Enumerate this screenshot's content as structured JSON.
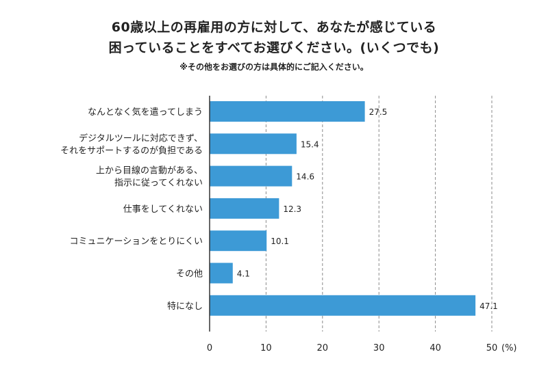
{
  "title_line1": "60歳以上の再雇用の方に対して、あなたが感じている",
  "title_line2": "困っていることをすべてお選びください。(いくつでも)",
  "subtitle": "※その他をお選びの方は具体的にご記入ください。",
  "chart_data": {
    "type": "bar",
    "orientation": "horizontal",
    "categories": [
      [
        "なんとなく気を遣ってしまう"
      ],
      [
        "デジタルツールに対応できず、",
        "それをサポートするのが負担である"
      ],
      [
        "上から目線の言動がある、",
        "指示に従ってくれない"
      ],
      [
        "仕事をしてくれない"
      ],
      [
        "コミュニケーションをとりにくい"
      ],
      [
        "その他"
      ],
      [
        "特になし"
      ]
    ],
    "values": [
      27.5,
      15.4,
      14.6,
      12.3,
      10.1,
      4.1,
      47.1
    ],
    "value_labels": [
      "27.5",
      "15.4",
      "14.6",
      "12.3",
      "10.1",
      "4.1",
      "47.1"
    ],
    "xlim": [
      0,
      50
    ],
    "xticks": [
      0,
      10,
      20,
      30,
      40,
      50
    ],
    "xtick_labels": [
      "0",
      "10",
      "20",
      "30",
      "40",
      "50"
    ],
    "unit_label": "(%)",
    "grid": "vertical dashed",
    "bar_color": "#3d9ad6"
  }
}
